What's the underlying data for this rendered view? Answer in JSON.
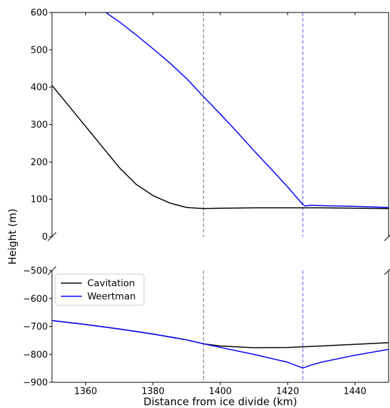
{
  "chart_data": {
    "type": "line",
    "title": "",
    "xlabel": "Distance from ice divide (km)",
    "ylabel": "Height (m)",
    "xlim": [
      1350,
      1450
    ],
    "x_ticks": [
      1360,
      1380,
      1400,
      1420,
      1440
    ],
    "panels": [
      {
        "name": "upper",
        "ylim": [
          0,
          600
        ],
        "y_ticks": [
          0,
          100,
          200,
          300,
          400,
          500,
          600
        ],
        "series": [
          {
            "name": "Cavitation",
            "color": "#000000",
            "x": [
              1350,
              1355,
              1360,
              1365,
              1370,
              1375,
              1380,
              1385,
              1390,
              1395,
              1400,
              1410,
              1420,
              1424.5,
              1430,
              1440,
              1450
            ],
            "y": [
              405,
              350,
              295,
              240,
              185,
              140,
              110,
              90,
              78,
              75,
              76,
              77,
              77,
              77,
              77,
              76,
              75
            ]
          },
          {
            "name": "Weertman",
            "color": "#0000ff",
            "x": [
              1366,
              1370,
              1375,
              1380,
              1385,
              1390,
              1395,
              1400,
              1405,
              1410,
              1415,
              1420,
              1424.5,
              1425.3,
              1427,
              1430,
              1440,
              1450
            ],
            "y": [
              600,
              575,
              540,
              503,
              465,
              423,
              375,
              328,
              280,
              230,
              182,
              133,
              86,
              82,
              84,
              83,
              81,
              78
            ]
          }
        ],
        "vlines": [
          {
            "x": 1395,
            "color": "#808080"
          },
          {
            "x": 1424.5,
            "color": "#6a6aff"
          }
        ]
      },
      {
        "name": "lower",
        "ylim": [
          -900,
          -500
        ],
        "y_ticks": [
          -900,
          -800,
          -700,
          -600,
          -500
        ],
        "series": [
          {
            "name": "Cavitation",
            "color": "#000000",
            "x": [
              1350,
              1360,
              1370,
              1380,
              1390,
              1395,
              1400,
              1410,
              1420,
              1430,
              1440,
              1450
            ],
            "y": [
              -679,
              -693,
              -709,
              -727,
              -748,
              -762,
              -770,
              -776,
              -775,
              -770,
              -764,
              -758
            ]
          },
          {
            "name": "Weertman",
            "color": "#0000ff",
            "x": [
              1350,
              1360,
              1370,
              1380,
              1390,
              1395,
              1400,
              1410,
              1420,
              1424.5,
              1427,
              1430,
              1440,
              1450
            ],
            "y": [
              -679,
              -693,
              -709,
              -727,
              -748,
              -762,
              -775,
              -800,
              -828,
              -849,
              -838,
              -828,
              -803,
              -782
            ]
          }
        ],
        "vlines": [
          {
            "x": 1395,
            "color": "#808080"
          },
          {
            "x": 1424.5,
            "color": "#6a6aff"
          }
        ]
      }
    ],
    "legend": {
      "placement": "upper-left of lower panel",
      "entries": [
        {
          "label": "Cavitation",
          "color": "#000000"
        },
        {
          "label": "Weertman",
          "color": "#0000ff"
        }
      ]
    },
    "grid": false,
    "broken_axis": true
  }
}
